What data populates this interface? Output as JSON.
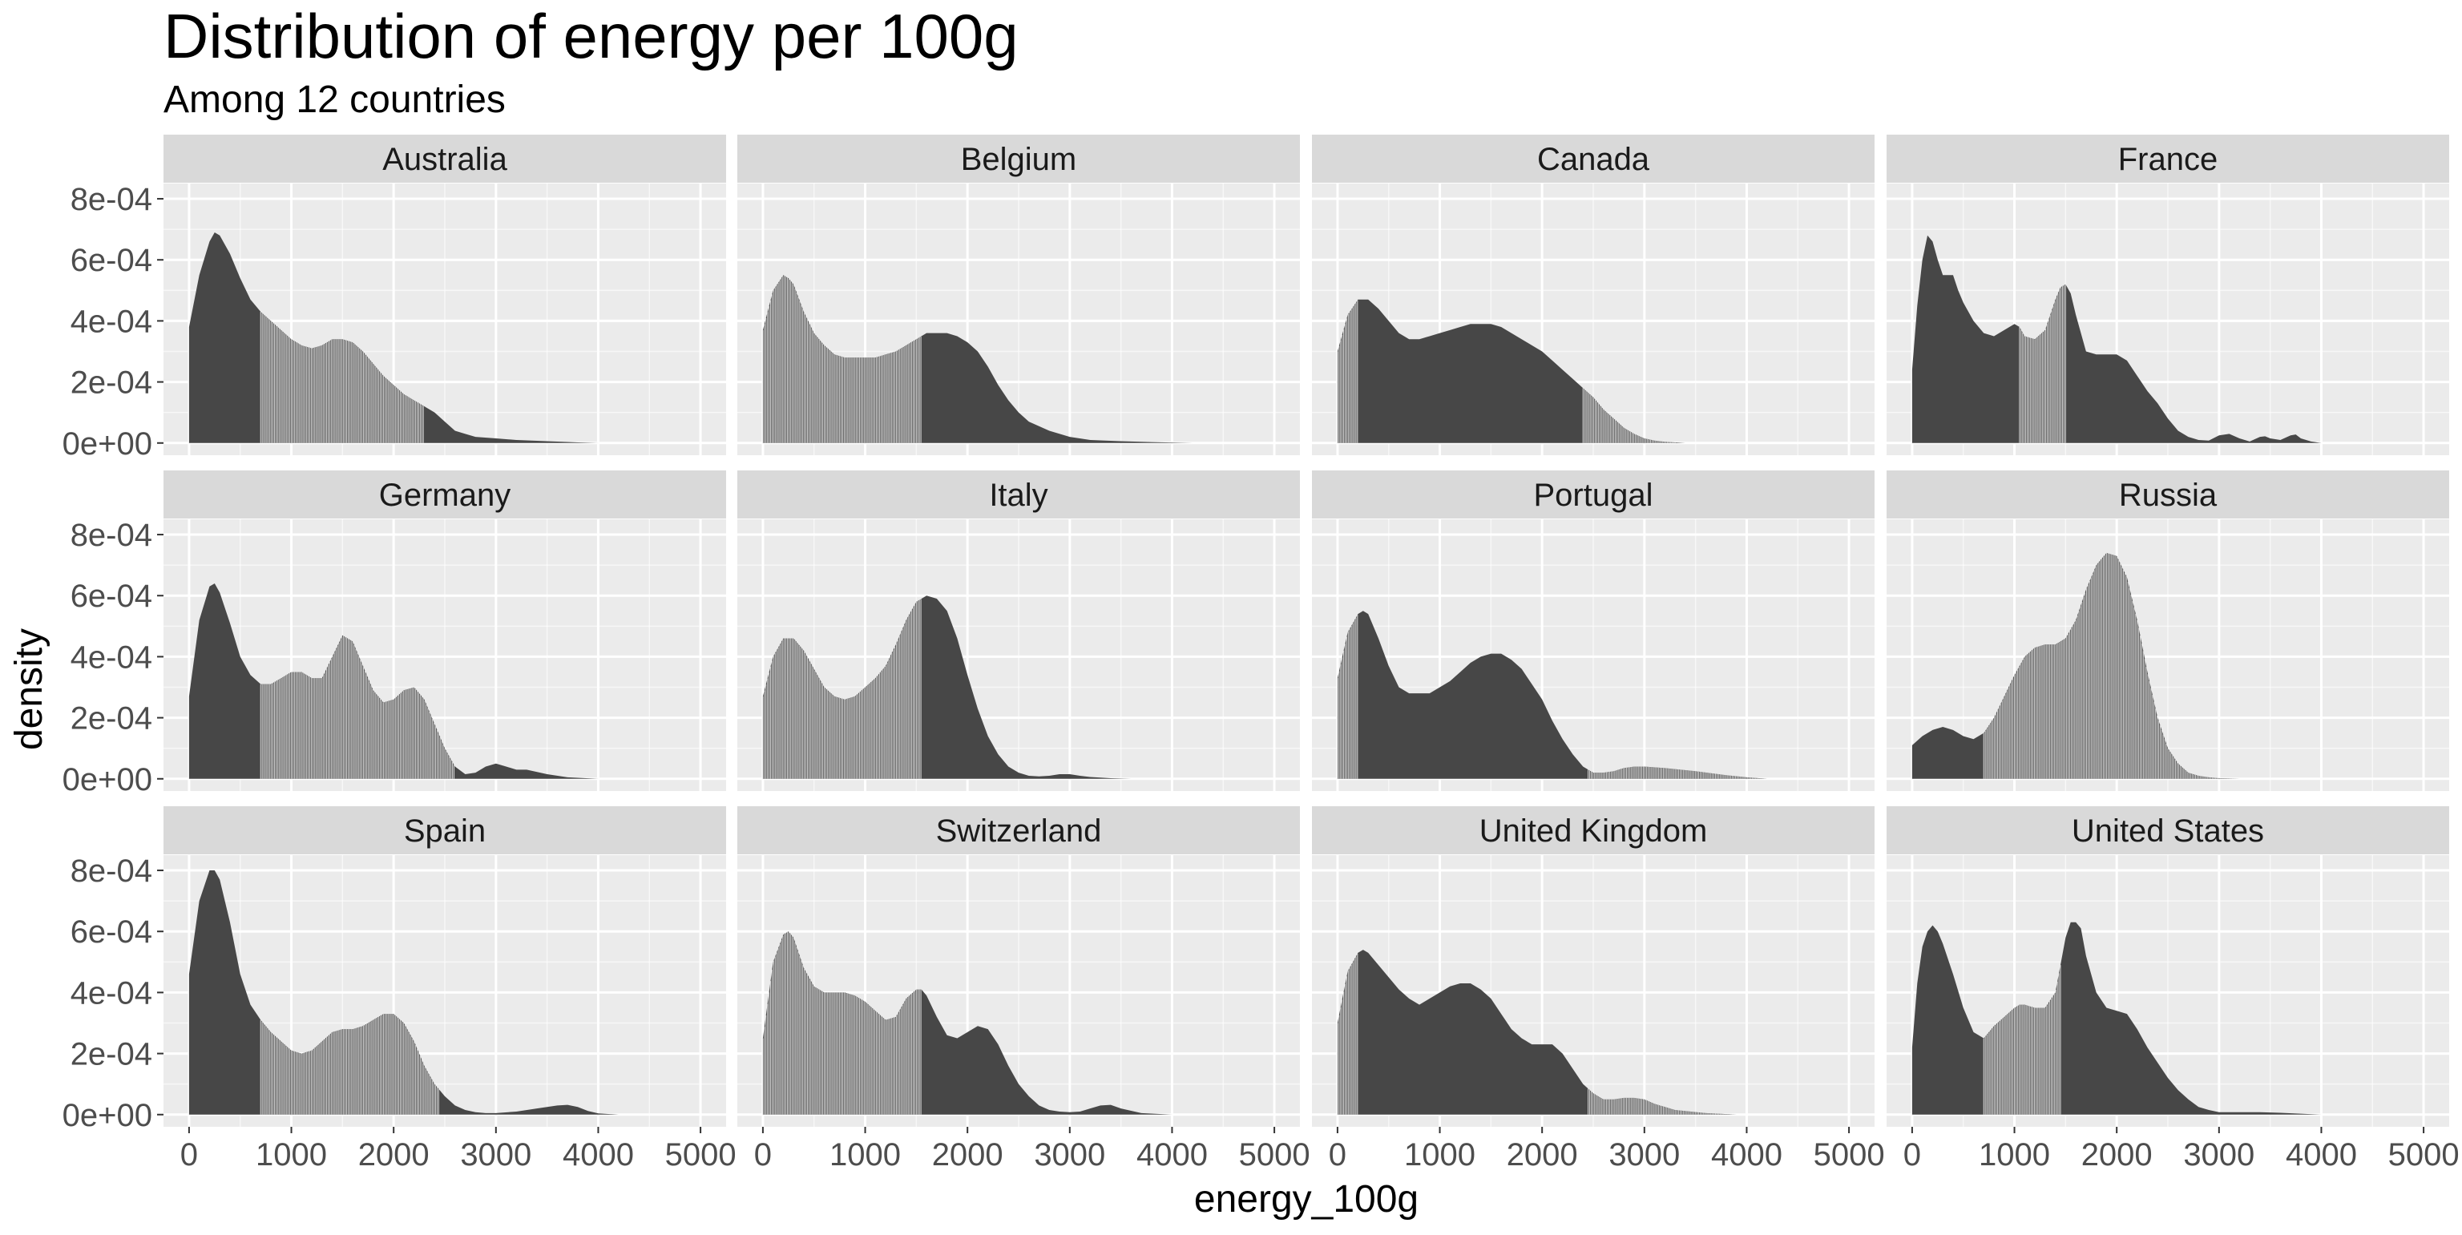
{
  "chart_data": {
    "type": "area",
    "title": "Distribution of energy per 100g",
    "subtitle": "Among 12 countries",
    "xlabel": "energy_100g",
    "ylabel": "density",
    "xlim": [
      -250,
      5250
    ],
    "ylim": [
      -4e-05,
      0.00085
    ],
    "x_ticks": [
      0,
      1000,
      2000,
      3000,
      4000,
      5000
    ],
    "x_tick_labels": [
      "0",
      "1000",
      "2000",
      "3000",
      "4000",
      "5000"
    ],
    "y_ticks": [
      0,
      0.0002,
      0.0004,
      0.0006,
      0.0008
    ],
    "y_tick_labels": [
      "0e+00",
      "2e-04",
      "4e-04",
      "6e-04",
      "8e-04"
    ],
    "grid": true,
    "facet_layout": {
      "columns": 4,
      "rows": 3
    },
    "colors": {
      "panel_background": "#ebebeb",
      "grid_major": "#ffffff",
      "strip_background": "#d9d9d9",
      "fill": "#474747",
      "band_line": "#ebebeb"
    },
    "panels": [
      {
        "label": "Australia",
        "x": [
          0,
          100,
          200,
          250,
          300,
          400,
          500,
          600,
          700,
          800,
          900,
          1000,
          1100,
          1200,
          1300,
          1400,
          1500,
          1600,
          1700,
          1800,
          1900,
          2000,
          2100,
          2200,
          2300,
          2400,
          2500,
          2600,
          2700,
          2800,
          3000,
          3200,
          3500,
          3800,
          4000
        ],
        "y": [
          0.00038,
          0.00055,
          0.00066,
          0.00069,
          0.00068,
          0.00062,
          0.00054,
          0.00047,
          0.00043,
          0.0004,
          0.00037,
          0.00034,
          0.00032,
          0.00031,
          0.00032,
          0.00034,
          0.00034,
          0.00033,
          0.0003,
          0.00026,
          0.00022,
          0.00019,
          0.00016,
          0.00014,
          0.00012,
          0.0001,
          7e-05,
          4e-05,
          3e-05,
          2e-05,
          1.5e-05,
          1e-05,
          6e-06,
          2e-06,
          0.0
        ],
        "band_x": [
          700,
          2300
        ]
      },
      {
        "label": "Belgium",
        "x": [
          0,
          100,
          200,
          250,
          300,
          400,
          500,
          600,
          700,
          800,
          900,
          1000,
          1100,
          1200,
          1300,
          1400,
          1500,
          1600,
          1700,
          1800,
          1900,
          2000,
          2100,
          2200,
          2300,
          2400,
          2500,
          2600,
          2800,
          3000,
          3200,
          3500,
          3800,
          4200
        ],
        "y": [
          0.00037,
          0.0005,
          0.00055,
          0.00054,
          0.00052,
          0.00043,
          0.00036,
          0.00032,
          0.00029,
          0.00028,
          0.00028,
          0.00028,
          0.00028,
          0.00029,
          0.0003,
          0.00032,
          0.00034,
          0.00036,
          0.00036,
          0.00036,
          0.00035,
          0.00033,
          0.0003,
          0.00025,
          0.00019,
          0.00014,
          0.0001,
          7e-05,
          4e-05,
          2e-05,
          1e-05,
          6e-06,
          3e-06,
          0.0
        ],
        "band_x": [
          0,
          1550
        ]
      },
      {
        "label": "Canada",
        "x": [
          0,
          100,
          200,
          300,
          400,
          500,
          600,
          700,
          800,
          900,
          1000,
          1100,
          1200,
          1300,
          1400,
          1500,
          1600,
          1700,
          1800,
          1900,
          2000,
          2100,
          2200,
          2300,
          2400,
          2500,
          2600,
          2700,
          2800,
          2900,
          3000,
          3100,
          3200,
          3300,
          3400
        ],
        "y": [
          0.0003,
          0.00042,
          0.00047,
          0.00047,
          0.00044,
          0.0004,
          0.00036,
          0.00034,
          0.00034,
          0.00035,
          0.00036,
          0.00037,
          0.00038,
          0.00039,
          0.00039,
          0.00039,
          0.00038,
          0.00036,
          0.00034,
          0.00032,
          0.0003,
          0.00027,
          0.00024,
          0.00021,
          0.00018,
          0.00015,
          0.00011,
          8e-05,
          5e-05,
          3e-05,
          1.5e-05,
          8e-06,
          4e-06,
          2e-06,
          0.0
        ],
        "band_x": [
          0,
          200,
          2400,
          3300
        ]
      },
      {
        "label": "France",
        "x": [
          0,
          50,
          100,
          150,
          200,
          250,
          300,
          350,
          400,
          450,
          500,
          600,
          700,
          800,
          900,
          1000,
          1050,
          1100,
          1200,
          1300,
          1400,
          1450,
          1500,
          1550,
          1600,
          1700,
          1800,
          1900,
          2000,
          2100,
          2200,
          2300,
          2400,
          2500,
          2600,
          2700,
          2800,
          2900,
          3000,
          3100,
          3200,
          3300,
          3400,
          3450,
          3500,
          3600,
          3700,
          3750,
          3800,
          3900,
          4000
        ],
        "y": [
          0.00024,
          0.00045,
          0.0006,
          0.00068,
          0.00066,
          0.0006,
          0.00055,
          0.00055,
          0.00055,
          0.0005,
          0.00046,
          0.0004,
          0.00036,
          0.00035,
          0.00037,
          0.00039,
          0.00038,
          0.00035,
          0.00034,
          0.00037,
          0.00047,
          0.00051,
          0.00052,
          0.00049,
          0.00042,
          0.0003,
          0.00029,
          0.00029,
          0.00029,
          0.00027,
          0.00022,
          0.00017,
          0.00013,
          8e-05,
          4e-05,
          2e-05,
          1e-05,
          8e-06,
          2.5e-05,
          3e-05,
          1.5e-05,
          5e-06,
          2e-05,
          2.2e-05,
          1.5e-05,
          1e-05,
          2.5e-05,
          2.8e-05,
          1.5e-05,
          5e-06,
          0.0
        ],
        "band_x": [
          1050,
          1500
        ]
      },
      {
        "label": "Germany",
        "x": [
          0,
          100,
          200,
          250,
          300,
          400,
          500,
          600,
          700,
          800,
          900,
          1000,
          1100,
          1200,
          1300,
          1400,
          1500,
          1600,
          1700,
          1800,
          1900,
          2000,
          2100,
          2200,
          2300,
          2400,
          2500,
          2600,
          2700,
          2800,
          2900,
          3000,
          3100,
          3200,
          3300,
          3500,
          3700,
          4000
        ],
        "y": [
          0.00027,
          0.00052,
          0.00063,
          0.00064,
          0.00061,
          0.00051,
          0.0004,
          0.00034,
          0.00031,
          0.00031,
          0.00033,
          0.00035,
          0.00035,
          0.00033,
          0.00033,
          0.0004,
          0.00047,
          0.00045,
          0.00037,
          0.00029,
          0.00025,
          0.00026,
          0.00029,
          0.0003,
          0.00026,
          0.00018,
          0.0001,
          4e-05,
          1.5e-05,
          2e-05,
          4e-05,
          5e-05,
          4e-05,
          3e-05,
          3e-05,
          1.5e-05,
          5e-06,
          0.0
        ],
        "band_x": [
          700,
          2600
        ]
      },
      {
        "label": "Italy",
        "x": [
          0,
          100,
          200,
          300,
          400,
          500,
          600,
          700,
          800,
          900,
          1000,
          1100,
          1200,
          1300,
          1400,
          1500,
          1600,
          1700,
          1800,
          1900,
          2000,
          2100,
          2200,
          2300,
          2400,
          2500,
          2600,
          2700,
          2800,
          2900,
          3000,
          3100,
          3200,
          3400,
          3600
        ],
        "y": [
          0.00027,
          0.0004,
          0.00046,
          0.00046,
          0.00042,
          0.00036,
          0.0003,
          0.00027,
          0.00026,
          0.00027,
          0.0003,
          0.00033,
          0.00037,
          0.00044,
          0.00052,
          0.00058,
          0.0006,
          0.00059,
          0.00055,
          0.00046,
          0.00034,
          0.00023,
          0.00014,
          8e-05,
          4e-05,
          2e-05,
          1e-05,
          8e-06,
          1e-05,
          1.5e-05,
          1.5e-05,
          1e-05,
          6e-06,
          2e-06,
          0.0
        ],
        "band_x": [
          0,
          1550
        ]
      },
      {
        "label": "Portugal",
        "x": [
          0,
          100,
          200,
          250,
          300,
          400,
          500,
          600,
          700,
          800,
          900,
          1000,
          1100,
          1200,
          1300,
          1400,
          1500,
          1600,
          1700,
          1800,
          1900,
          2000,
          2100,
          2200,
          2300,
          2400,
          2500,
          2600,
          2700,
          2800,
          2900,
          3000,
          3200,
          3500,
          3800,
          4000,
          4200
        ],
        "y": [
          0.00033,
          0.00048,
          0.00054,
          0.00055,
          0.00054,
          0.00046,
          0.00037,
          0.0003,
          0.00028,
          0.00028,
          0.00028,
          0.0003,
          0.00032,
          0.00035,
          0.00038,
          0.0004,
          0.00041,
          0.00041,
          0.00039,
          0.00036,
          0.00031,
          0.00026,
          0.00019,
          0.00013,
          8e-05,
          4e-05,
          2e-05,
          2e-05,
          2.5e-05,
          3.5e-05,
          4e-05,
          4e-05,
          3.5e-05,
          2.5e-05,
          1.2e-05,
          5e-06,
          0.0
        ],
        "band_x": [
          0,
          200,
          2450,
          4200
        ]
      },
      {
        "label": "Russia",
        "x": [
          0,
          100,
          200,
          300,
          400,
          500,
          600,
          700,
          800,
          900,
          1000,
          1100,
          1200,
          1300,
          1400,
          1500,
          1600,
          1700,
          1800,
          1900,
          2000,
          2100,
          2200,
          2300,
          2400,
          2500,
          2600,
          2700,
          2800,
          2900,
          3000,
          3100,
          3200,
          3300
        ],
        "y": [
          0.00011,
          0.00014,
          0.00016,
          0.00017,
          0.00016,
          0.00014,
          0.00013,
          0.00015,
          0.0002,
          0.00027,
          0.00034,
          0.0004,
          0.00043,
          0.00044,
          0.00044,
          0.00046,
          0.00052,
          0.00062,
          0.0007,
          0.00074,
          0.00073,
          0.00066,
          0.00052,
          0.00035,
          0.0002,
          0.0001,
          5e-05,
          2e-05,
          1e-05,
          5e-06,
          2e-06,
          1e-06,
          0.0,
          0.0
        ],
        "band_x": [
          700,
          3300
        ]
      },
      {
        "label": "Spain",
        "x": [
          0,
          100,
          200,
          250,
          300,
          400,
          500,
          600,
          700,
          800,
          900,
          1000,
          1100,
          1200,
          1300,
          1400,
          1500,
          1600,
          1700,
          1800,
          1900,
          2000,
          2100,
          2200,
          2300,
          2400,
          2500,
          2600,
          2700,
          2800,
          2900,
          3000,
          3200,
          3400,
          3600,
          3700,
          3800,
          3900,
          4000,
          4200
        ],
        "y": [
          0.00046,
          0.0007,
          0.0008,
          0.0008,
          0.00077,
          0.00063,
          0.00046,
          0.00036,
          0.00031,
          0.00027,
          0.00024,
          0.00021,
          0.0002,
          0.00021,
          0.00024,
          0.00027,
          0.00028,
          0.00028,
          0.00029,
          0.00031,
          0.00033,
          0.00033,
          0.0003,
          0.00024,
          0.00016,
          0.0001,
          6e-05,
          3e-05,
          1.5e-05,
          8e-06,
          5e-06,
          5e-06,
          1e-05,
          2e-05,
          3e-05,
          3.2e-05,
          2.5e-05,
          1.2e-05,
          4e-06,
          0.0
        ],
        "band_x": [
          700,
          2450
        ]
      },
      {
        "label": "Switzerland",
        "x": [
          0,
          100,
          200,
          250,
          300,
          400,
          500,
          600,
          700,
          800,
          900,
          1000,
          1100,
          1200,
          1300,
          1400,
          1500,
          1550,
          1600,
          1700,
          1800,
          1900,
          2000,
          2100,
          2200,
          2300,
          2400,
          2500,
          2600,
          2700,
          2800,
          2900,
          3000,
          3100,
          3200,
          3300,
          3400,
          3500,
          3700,
          4000
        ],
        "y": [
          0.00025,
          0.0005,
          0.00059,
          0.0006,
          0.00058,
          0.00048,
          0.00042,
          0.0004,
          0.0004,
          0.0004,
          0.00039,
          0.00037,
          0.00034,
          0.00031,
          0.00032,
          0.00038,
          0.00041,
          0.00041,
          0.00039,
          0.00032,
          0.00026,
          0.00025,
          0.00027,
          0.00029,
          0.00028,
          0.00023,
          0.00016,
          0.0001,
          6e-05,
          3e-05,
          1.5e-05,
          1e-05,
          8e-06,
          1e-05,
          2e-05,
          3e-05,
          3.2e-05,
          2e-05,
          5e-06,
          0.0
        ],
        "band_x": [
          0,
          1550
        ]
      },
      {
        "label": "United Kingdom",
        "x": [
          0,
          100,
          200,
          250,
          300,
          400,
          500,
          600,
          700,
          800,
          900,
          1000,
          1100,
          1200,
          1300,
          1400,
          1500,
          1600,
          1700,
          1800,
          1900,
          2000,
          2100,
          2200,
          2300,
          2400,
          2500,
          2600,
          2700,
          2800,
          2900,
          3000,
          3100,
          3300,
          3600,
          3900
        ],
        "y": [
          0.0003,
          0.00047,
          0.00053,
          0.00054,
          0.00053,
          0.00049,
          0.00045,
          0.00041,
          0.00038,
          0.00036,
          0.00038,
          0.0004,
          0.00042,
          0.00043,
          0.00043,
          0.00041,
          0.00038,
          0.00033,
          0.00028,
          0.00025,
          0.00023,
          0.00023,
          0.00023,
          0.0002,
          0.00015,
          0.0001,
          7e-05,
          5e-05,
          5e-05,
          5.5e-05,
          5.5e-05,
          5e-05,
          3.5e-05,
          1.5e-05,
          5e-06,
          0.0
        ],
        "band_x": [
          0,
          200,
          2450,
          3900
        ]
      },
      {
        "label": "United States",
        "x": [
          0,
          50,
          100,
          150,
          200,
          250,
          300,
          400,
          500,
          600,
          700,
          800,
          900,
          1000,
          1050,
          1100,
          1200,
          1300,
          1400,
          1500,
          1550,
          1600,
          1650,
          1700,
          1800,
          1900,
          2000,
          2100,
          2200,
          2300,
          2400,
          2500,
          2600,
          2700,
          2800,
          2900,
          3000,
          3200,
          3400,
          3600,
          3800,
          4000
        ],
        "y": [
          0.00022,
          0.00043,
          0.00055,
          0.0006,
          0.00062,
          0.0006,
          0.00056,
          0.00046,
          0.00035,
          0.00027,
          0.00025,
          0.00029,
          0.00032,
          0.00035,
          0.00036,
          0.00036,
          0.00035,
          0.00035,
          0.0004,
          0.00058,
          0.00063,
          0.00063,
          0.00061,
          0.00052,
          0.0004,
          0.00035,
          0.00034,
          0.00033,
          0.00028,
          0.00022,
          0.00017,
          0.00012,
          8e-05,
          5e-05,
          2.5e-05,
          1.5e-05,
          8e-06,
          8e-06,
          8e-06,
          6e-06,
          3e-06,
          0.0
        ],
        "band_x": [
          700,
          1450
        ]
      }
    ]
  }
}
